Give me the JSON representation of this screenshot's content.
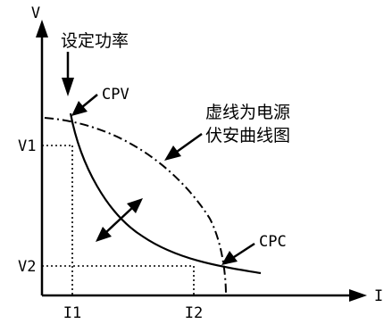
{
  "axes": {
    "y_label": "V",
    "x_label": "I"
  },
  "annotations": {
    "set_power": "设定功率",
    "cpv": "CPV",
    "cpc": "CPC",
    "supply_curve_line1": "虚线为电源",
    "supply_curve_line2": "伏安曲线图"
  },
  "ticks": {
    "v1": "V1",
    "v2": "V2",
    "i1": "I1",
    "i2": "I2"
  }
}
